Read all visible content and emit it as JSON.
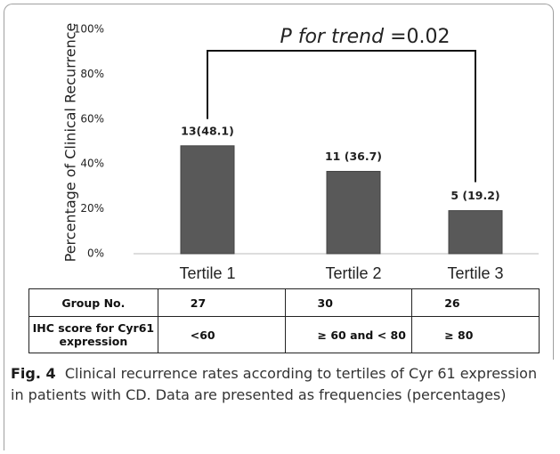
{
  "chart_data": {
    "type": "bar",
    "y_label": "Percentage of Clinical Recurrence",
    "annotation": {
      "italic": "P for trend",
      "text": "=0.02"
    },
    "categories": [
      "Tertile 1",
      "Tertile 2",
      "Tertile 3"
    ],
    "values": [
      48.1,
      36.7,
      19.2
    ],
    "value_labels": [
      "13(48.1)",
      "11 (36.7)",
      "5 (19.2)"
    ],
    "color": "#595959",
    "ylim": [
      0,
      100
    ],
    "yticks": [
      {
        "value": 0,
        "label": "0%"
      },
      {
        "value": 20,
        "label": "20%"
      },
      {
        "value": 40,
        "label": "40%"
      },
      {
        "value": 60,
        "label": "60%"
      },
      {
        "value": 80,
        "label": "80%"
      },
      {
        "value": 100,
        "label": "100%"
      }
    ],
    "grid": false
  },
  "table": {
    "rows": [
      [
        "Group No.",
        "27",
        "30",
        "26"
      ],
      [
        "IHC score for Cyr61 expression",
        "<60",
        "≥ 60 and < 80",
        "≥ 80"
      ]
    ]
  },
  "caption": {
    "label": "Fig. 4",
    "text": "Clinical recurrence rates according to tertiles of Cyr 61 expression in patients with CD. Data are presented as frequencies (percentages)"
  }
}
